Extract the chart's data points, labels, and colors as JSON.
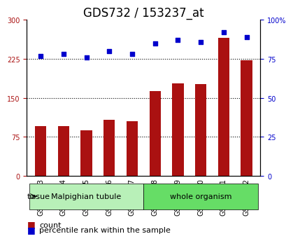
{
  "title": "GDS732 / 153237_at",
  "samples": [
    "GSM29173",
    "GSM29174",
    "GSM29175",
    "GSM29176",
    "GSM29177",
    "GSM29178",
    "GSM29179",
    "GSM29180",
    "GSM29181",
    "GSM29182"
  ],
  "counts": [
    95,
    95,
    88,
    108,
    105,
    163,
    178,
    177,
    265,
    223
  ],
  "percentiles": [
    77,
    78,
    76,
    80,
    78,
    85,
    87,
    86,
    92,
    89
  ],
  "tissue_groups": [
    {
      "label": "Malpighian tubule",
      "start": 0,
      "end": 5,
      "color": "#b8f0b8"
    },
    {
      "label": "whole organism",
      "start": 5,
      "end": 10,
      "color": "#66dd66"
    }
  ],
  "left_yticks": [
    0,
    75,
    150,
    225,
    300
  ],
  "right_yticks": [
    0,
    25,
    50,
    75,
    100
  ],
  "left_ylim": [
    0,
    300
  ],
  "right_ylim": [
    0,
    100
  ],
  "bar_color": "#aa1111",
  "dot_color": "#0000cc",
  "grid_color": "#000000",
  "title_fontsize": 12,
  "tick_fontsize": 7,
  "label_fontsize": 8,
  "legend_fontsize": 8,
  "bg_color": "#ffffff",
  "tissue_label": "tissue",
  "legend_count": "count",
  "legend_percentile": "percentile rank within the sample"
}
